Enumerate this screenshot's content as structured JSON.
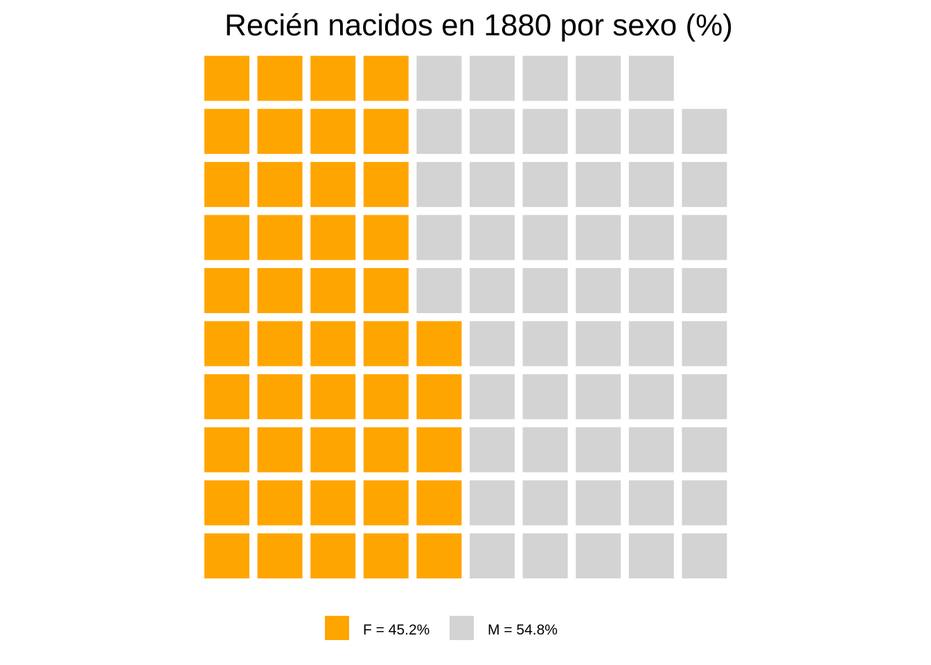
{
  "chart_data": {
    "type": "waffle",
    "title": "Recién nacidos en 1880 por sexo (%)",
    "total_squares": 99,
    "grid": {
      "rows": 10,
      "columns": 10
    },
    "series": [
      {
        "name": "F",
        "label": "F = 45.2%",
        "value": 45.2,
        "squares": 45,
        "color": "#FFA500"
      },
      {
        "name": "M",
        "label": "M = 54.8%",
        "value": 54.8,
        "squares": 54,
        "color": "#D3D3D3"
      }
    ],
    "legend_position": "bottom",
    "grid_lines": false
  }
}
